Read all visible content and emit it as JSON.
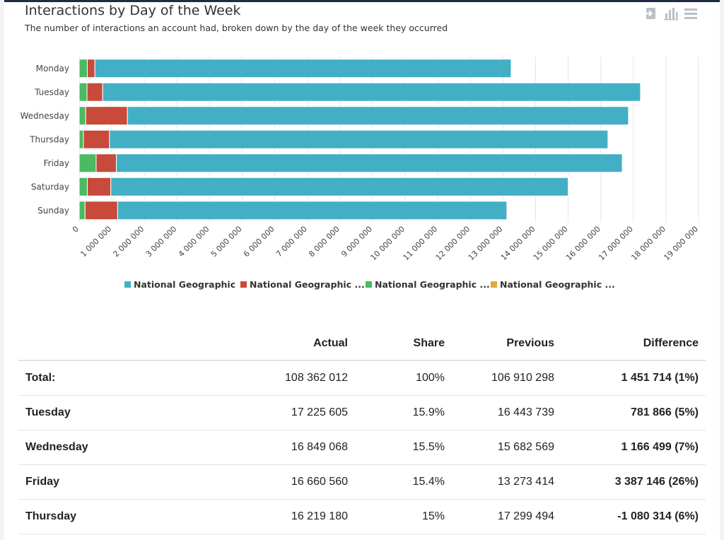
{
  "header": {
    "title": "Interactions by Day of the Week",
    "subtitle": "The number of interactions an account had, broken down by the day of the week they occurred"
  },
  "toolbar": {
    "icons": [
      "export-icon",
      "bar-chart-icon",
      "menu-icon"
    ]
  },
  "chart_data": {
    "type": "bar",
    "orientation": "horizontal",
    "stacked": true,
    "title": "",
    "xlabel": "",
    "ylabel": "",
    "xlim": [
      0,
      19000000
    ],
    "x_ticks": [
      0,
      1000000,
      2000000,
      3000000,
      4000000,
      5000000,
      6000000,
      7000000,
      8000000,
      9000000,
      10000000,
      11000000,
      12000000,
      13000000,
      14000000,
      15000000,
      16000000,
      17000000,
      18000000,
      19000000
    ],
    "x_tick_labels": [
      "0",
      "1 000 000",
      "2 000 000",
      "3 000 000",
      "4 000 000",
      "5 000 000",
      "6 000 000",
      "7 000 000",
      "8 000 000",
      "9 000 000",
      "10 000 000",
      "11 000 000",
      "12 000 000",
      "13 000 000",
      "14 000 000",
      "15 000 000",
      "16 000 000",
      "17 000 000",
      "18 000 000",
      "19 000 000"
    ],
    "grid": true,
    "legend_position": "bottom",
    "categories": [
      "Monday",
      "Tuesday",
      "Wednesday",
      "Thursday",
      "Friday",
      "Saturday",
      "Sunday"
    ],
    "series": [
      {
        "name": "National Geographic ...",
        "color": "#4cb963",
        "values": [
          250000,
          240000,
          200000,
          130000,
          520000,
          250000,
          180000
        ]
      },
      {
        "name": "National Geographic ...",
        "color": "#c84a3a",
        "values": [
          230000,
          480000,
          1280000,
          800000,
          620000,
          720000,
          1000000
        ]
      },
      {
        "name": "National Geographic",
        "color": "#42afc5",
        "values": [
          12770000,
          16500000,
          15370000,
          15290000,
          15520000,
          14030000,
          11940000
        ]
      },
      {
        "name": "National Geographic ...",
        "color": "#e2a93b",
        "values": [
          0,
          0,
          0,
          0,
          0,
          0,
          0
        ]
      }
    ],
    "legend_order": [
      2,
      1,
      0,
      3
    ]
  },
  "table": {
    "headers": [
      "",
      "Actual",
      "Share",
      "Previous",
      "Difference"
    ],
    "rows": [
      {
        "label": "Total:",
        "actual": "108 362 012",
        "share": "100%",
        "previous": "106 910 298",
        "difference": "1 451 714 (1%)",
        "sign": "pos"
      },
      {
        "label": "Tuesday",
        "actual": "17 225 605",
        "share": "15.9%",
        "previous": "16 443 739",
        "difference": "781 866 (5%)",
        "sign": "pos"
      },
      {
        "label": "Wednesday",
        "actual": "16 849 068",
        "share": "15.5%",
        "previous": "15 682 569",
        "difference": "1 166 499 (7%)",
        "sign": "pos"
      },
      {
        "label": "Friday",
        "actual": "16 660 560",
        "share": "15.4%",
        "previous": "13 273 414",
        "difference": "3 387 146 (26%)",
        "sign": "pos"
      },
      {
        "label": "Thursday",
        "actual": "16 219 180",
        "share": "15%",
        "previous": "17 299 494",
        "difference": "-1 080 314 (6%)",
        "sign": "neg"
      }
    ]
  }
}
